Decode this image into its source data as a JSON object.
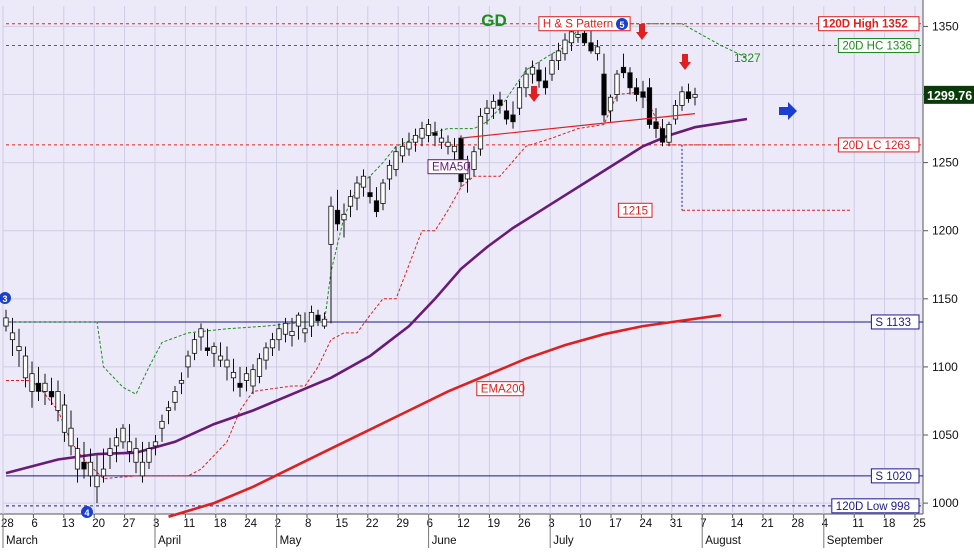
{
  "title": "GD",
  "colors": {
    "background": "#ECEAF8",
    "price_up": "#ffffff",
    "price_down": "#000000",
    "red": "#e02020",
    "green": "#1e8c1e",
    "purple": "#6a1a78",
    "navy": "#1c1c8c",
    "blue_arrow": "#1a3fd0",
    "last_price_bg": "#0a3a0a",
    "last_price_fg": "#ffffff"
  },
  "markers": {
    "wave_3": "3",
    "wave_4": "4",
    "wave_5": "5"
  },
  "chart_data": {
    "type": "candlestick",
    "y_range": [
      992,
      1365
    ],
    "y_ticks": [
      1000,
      1050,
      1100,
      1150,
      1200,
      1250,
      1300,
      1350
    ],
    "x_tick_labels": [
      "28",
      "6",
      "13",
      "20",
      "27",
      "3",
      "11",
      "18",
      "24",
      "2",
      "8",
      "15",
      "22",
      "29",
      "6",
      "12",
      "19",
      "26",
      "3",
      "10",
      "17",
      "24",
      "31",
      "7",
      "14",
      "21",
      "28",
      "4",
      "11",
      "18",
      "25"
    ],
    "month_labels": [
      "March",
      "April",
      "May",
      "June",
      "July",
      "August",
      "September"
    ],
    "month_tick_index": [
      0,
      5,
      9,
      14,
      18,
      23,
      27
    ],
    "ohlc": [
      [
        1130,
        1142,
        1126,
        1136
      ],
      [
        1120,
        1136,
        1108,
        1125
      ],
      [
        1112,
        1128,
        1100,
        1115
      ],
      [
        1092,
        1115,
        1085,
        1108
      ],
      [
        1082,
        1104,
        1070,
        1095
      ],
      [
        1088,
        1100,
        1075,
        1082
      ],
      [
        1082,
        1095,
        1072,
        1088
      ],
      [
        1082,
        1092,
        1072,
        1078
      ],
      [
        1068,
        1090,
        1060,
        1082
      ],
      [
        1052,
        1080,
        1045,
        1072
      ],
      [
        1042,
        1068,
        1035,
        1055
      ],
      [
        1025,
        1048,
        1015,
        1040
      ],
      [
        1030,
        1045,
        1018,
        1025
      ],
      [
        1020,
        1040,
        1012,
        1030
      ],
      [
        1012,
        1035,
        1000,
        1020
      ],
      [
        1020,
        1040,
        1015,
        1025
      ],
      [
        1035,
        1048,
        1025,
        1040
      ],
      [
        1042,
        1055,
        1030,
        1048
      ],
      [
        1045,
        1058,
        1040,
        1055
      ],
      [
        1038,
        1058,
        1030,
        1045
      ],
      [
        1030,
        1048,
        1022,
        1040
      ],
      [
        1020,
        1045,
        1015,
        1030
      ],
      [
        1030,
        1045,
        1025,
        1040
      ],
      [
        1042,
        1050,
        1035,
        1045
      ],
      [
        1055,
        1065,
        1045,
        1060
      ],
      [
        1068,
        1075,
        1058,
        1070
      ],
      [
        1074,
        1086,
        1068,
        1082
      ],
      [
        1088,
        1096,
        1080,
        1090
      ],
      [
        1100,
        1112,
        1092,
        1108
      ],
      [
        1110,
        1125,
        1105,
        1120
      ],
      [
        1122,
        1132,
        1112,
        1128
      ],
      [
        1114,
        1128,
        1108,
        1112
      ],
      [
        1110,
        1118,
        1100,
        1115
      ],
      [
        1105,
        1118,
        1100,
        1108
      ],
      [
        1100,
        1115,
        1090,
        1105
      ],
      [
        1092,
        1106,
        1082,
        1096
      ],
      [
        1088,
        1100,
        1078,
        1085
      ],
      [
        1090,
        1100,
        1082,
        1095
      ],
      [
        1086,
        1102,
        1080,
        1098
      ],
      [
        1093,
        1110,
        1088,
        1106
      ],
      [
        1105,
        1118,
        1098,
        1114
      ],
      [
        1114,
        1125,
        1108,
        1120
      ],
      [
        1120,
        1132,
        1112,
        1128
      ],
      [
        1124,
        1136,
        1118,
        1132
      ],
      [
        1123,
        1136,
        1115,
        1126
      ],
      [
        1130,
        1140,
        1120,
        1138
      ],
      [
        1125,
        1140,
        1118,
        1128
      ],
      [
        1130,
        1145,
        1122,
        1140
      ],
      [
        1138,
        1142,
        1130,
        1134
      ],
      [
        1130,
        1140,
        1128,
        1135
      ],
      [
        1190,
        1225,
        1132,
        1218
      ],
      [
        1215,
        1230,
        1200,
        1205
      ],
      [
        1208,
        1220,
        1195,
        1212
      ],
      [
        1218,
        1230,
        1210,
        1225
      ],
      [
        1224,
        1240,
        1215,
        1235
      ],
      [
        1232,
        1245,
        1225,
        1240
      ],
      [
        1228,
        1240,
        1220,
        1225
      ],
      [
        1222,
        1232,
        1210,
        1214
      ],
      [
        1220,
        1238,
        1215,
        1235
      ],
      [
        1238,
        1252,
        1230,
        1248
      ],
      [
        1245,
        1262,
        1240,
        1258
      ],
      [
        1255,
        1268,
        1250,
        1262
      ],
      [
        1260,
        1272,
        1255,
        1265
      ],
      [
        1265,
        1275,
        1258,
        1270
      ],
      [
        1268,
        1280,
        1262,
        1275
      ],
      [
        1270,
        1282,
        1265,
        1278
      ],
      [
        1272,
        1280,
        1262,
        1270
      ],
      [
        1265,
        1275,
        1260,
        1268
      ],
      [
        1262,
        1270,
        1256,
        1265
      ],
      [
        1258,
        1268,
        1250,
        1262
      ],
      [
        1268,
        1270,
        1232,
        1236
      ],
      [
        1238,
        1255,
        1228,
        1250
      ],
      [
        1245,
        1262,
        1240,
        1258
      ],
      [
        1260,
        1290,
        1255,
        1284
      ],
      [
        1286,
        1296,
        1278,
        1290
      ],
      [
        1290,
        1300,
        1282,
        1295
      ],
      [
        1296,
        1302,
        1286,
        1292
      ],
      [
        1288,
        1296,
        1278,
        1282
      ],
      [
        1285,
        1295,
        1275,
        1280
      ],
      [
        1290,
        1310,
        1285,
        1305
      ],
      [
        1305,
        1320,
        1298,
        1315
      ],
      [
        1315,
        1325,
        1308,
        1320
      ],
      [
        1318,
        1324,
        1305,
        1310
      ],
      [
        1310,
        1320,
        1300,
        1305
      ],
      [
        1315,
        1330,
        1310,
        1325
      ],
      [
        1325,
        1338,
        1318,
        1332
      ],
      [
        1330,
        1345,
        1325,
        1340
      ],
      [
        1338,
        1350,
        1332,
        1346
      ],
      [
        1342,
        1352,
        1338,
        1344
      ],
      [
        1345,
        1352,
        1336,
        1338
      ],
      [
        1338,
        1348,
        1330,
        1332
      ],
      [
        1330,
        1340,
        1325,
        1335
      ],
      [
        1315,
        1330,
        1280,
        1285
      ],
      [
        1288,
        1300,
        1280,
        1298
      ],
      [
        1300,
        1318,
        1295,
        1315
      ],
      [
        1320,
        1330,
        1312,
        1316
      ],
      [
        1316,
        1320,
        1300,
        1305
      ],
      [
        1305,
        1312,
        1295,
        1300
      ],
      [
        1302,
        1310,
        1290,
        1298
      ],
      [
        1305,
        1312,
        1275,
        1278
      ],
      [
        1280,
        1290,
        1268,
        1275
      ],
      [
        1275,
        1282,
        1262,
        1265
      ],
      [
        1265,
        1280,
        1262,
        1278
      ],
      [
        1282,
        1296,
        1278,
        1292
      ],
      [
        1292,
        1306,
        1288,
        1302
      ],
      [
        1302,
        1308,
        1294,
        1297
      ],
      [
        1298,
        1305,
        1292,
        1300
      ]
    ],
    "ema50": [
      [
        0,
        1022
      ],
      [
        8,
        1032
      ],
      [
        14,
        1036
      ],
      [
        20,
        1037
      ],
      [
        26,
        1045
      ],
      [
        32,
        1058
      ],
      [
        38,
        1068
      ],
      [
        44,
        1080
      ],
      [
        50,
        1092
      ],
      [
        56,
        1108
      ],
      [
        62,
        1130
      ],
      [
        66,
        1150
      ],
      [
        70,
        1172
      ],
      [
        74,
        1188
      ],
      [
        78,
        1202
      ],
      [
        82,
        1214
      ],
      [
        86,
        1226
      ],
      [
        90,
        1238
      ],
      [
        94,
        1250
      ],
      [
        98,
        1262
      ],
      [
        102,
        1270
      ],
      [
        106,
        1276
      ],
      [
        110,
        1279
      ],
      [
        114,
        1282
      ]
    ],
    "ema200": [
      [
        25,
        990
      ],
      [
        32,
        1000
      ],
      [
        38,
        1012
      ],
      [
        44,
        1026
      ],
      [
        50,
        1040
      ],
      [
        56,
        1054
      ],
      [
        62,
        1068
      ],
      [
        68,
        1082
      ],
      [
        74,
        1094
      ],
      [
        80,
        1106
      ],
      [
        86,
        1116
      ],
      [
        92,
        1124
      ],
      [
        98,
        1130
      ],
      [
        104,
        1134
      ],
      [
        110,
        1138
      ]
    ],
    "channel_upper": [
      [
        0,
        1133
      ],
      [
        8,
        1133
      ],
      [
        14,
        1133
      ],
      [
        15,
        1100
      ],
      [
        18,
        1085
      ],
      [
        20,
        1080
      ],
      [
        22,
        1100
      ],
      [
        24,
        1118
      ],
      [
        28,
        1125
      ],
      [
        34,
        1128
      ],
      [
        40,
        1130
      ],
      [
        46,
        1133
      ],
      [
        49,
        1133
      ],
      [
        50,
        1170
      ],
      [
        52,
        1210
      ],
      [
        54,
        1232
      ],
      [
        56,
        1240
      ],
      [
        58,
        1250
      ],
      [
        60,
        1262
      ],
      [
        64,
        1270
      ],
      [
        68,
        1275
      ],
      [
        72,
        1275
      ],
      [
        74,
        1280
      ],
      [
        76,
        1290
      ],
      [
        80,
        1318
      ],
      [
        84,
        1330
      ],
      [
        86,
        1335
      ],
      [
        88,
        1348
      ],
      [
        92,
        1352
      ],
      [
        104,
        1352
      ],
      [
        110,
        1336
      ],
      [
        114,
        1327
      ]
    ],
    "channel_lower": [
      [
        0,
        1090
      ],
      [
        4,
        1090
      ],
      [
        6,
        1080
      ],
      [
        8,
        1068
      ],
      [
        10,
        1045
      ],
      [
        12,
        1032
      ],
      [
        15,
        1018
      ],
      [
        20,
        1020
      ],
      [
        24,
        1020
      ],
      [
        28,
        1020
      ],
      [
        30,
        1025
      ],
      [
        34,
        1045
      ],
      [
        36,
        1068
      ],
      [
        38,
        1082
      ],
      [
        44,
        1086
      ],
      [
        46,
        1086
      ],
      [
        48,
        1100
      ],
      [
        50,
        1120
      ],
      [
        52,
        1125
      ],
      [
        54,
        1125
      ],
      [
        56,
        1138
      ],
      [
        58,
        1150
      ],
      [
        60,
        1150
      ],
      [
        62,
        1175
      ],
      [
        64,
        1200
      ],
      [
        66,
        1200
      ],
      [
        68,
        1215
      ],
      [
        70,
        1232
      ],
      [
        72,
        1240
      ],
      [
        76,
        1240
      ],
      [
        80,
        1262
      ],
      [
        84,
        1268
      ],
      [
        88,
        1275
      ],
      [
        92,
        1278
      ],
      [
        94,
        1300
      ],
      [
        98,
        1302
      ],
      [
        102,
        1263
      ],
      [
        106,
        1263
      ],
      [
        112,
        1263
      ]
    ],
    "neckline": [
      [
        70,
        1268
      ],
      [
        106,
        1286
      ]
    ],
    "level_lines": [
      {
        "label": "120D High 1352",
        "value": 1352,
        "style": "red-dashed",
        "x_from": 0
      },
      {
        "label": "20D HC 1336",
        "value": 1336,
        "style": "green-dashed",
        "x_from": 0
      },
      {
        "label": "20D LC 1263",
        "value": 1263,
        "style": "red-dashed",
        "x_from": 0
      },
      {
        "label": "S 1133",
        "value": 1133,
        "style": "navy-solid",
        "x_from": 0
      },
      {
        "label": "S 1020",
        "value": 1020,
        "style": "navy-solid",
        "x_from": 0
      },
      {
        "label": "120D Low 998",
        "value": 998,
        "style": "navy-dashed",
        "x_from": 0
      }
    ],
    "last_price": 1299.76,
    "annotations": [
      {
        "text": "H & S Pattern",
        "x_index": 89,
        "value": 1352,
        "style": "red-box"
      },
      {
        "text": "1327",
        "x_index": 112,
        "value": 1327,
        "style": "green-text"
      },
      {
        "text": "EMA50",
        "x_index": 68,
        "value": 1247,
        "style": "purple-box"
      },
      {
        "text": "EMA200",
        "x_index": 76,
        "value": 1084,
        "style": "red-box"
      },
      {
        "text": "1215",
        "x_index": 100,
        "value": 1215,
        "style": "red-box"
      }
    ]
  }
}
